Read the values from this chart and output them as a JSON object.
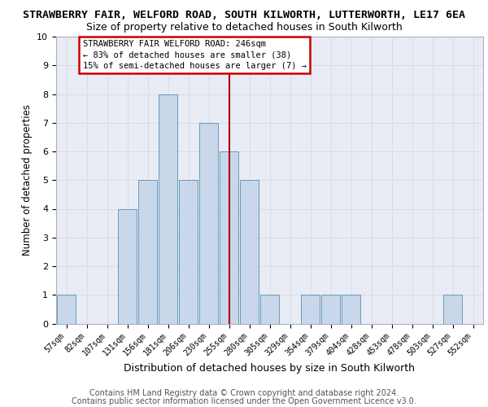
{
  "title": "STRAWBERRY FAIR, WELFORD ROAD, SOUTH KILWORTH, LUTTERWORTH, LE17 6EA",
  "subtitle": "Size of property relative to detached houses in South Kilworth",
  "xlabel": "Distribution of detached houses by size in South Kilworth",
  "ylabel": "Number of detached properties",
  "categories": [
    "57sqm",
    "82sqm",
    "107sqm",
    "131sqm",
    "156sqm",
    "181sqm",
    "206sqm",
    "230sqm",
    "255sqm",
    "280sqm",
    "305sqm",
    "329sqm",
    "354sqm",
    "379sqm",
    "404sqm",
    "428sqm",
    "453sqm",
    "478sqm",
    "503sqm",
    "527sqm",
    "552sqm"
  ],
  "values": [
    1,
    0,
    0,
    4,
    5,
    8,
    5,
    7,
    6,
    5,
    1,
    0,
    1,
    1,
    1,
    0,
    0,
    0,
    0,
    1,
    0
  ],
  "bar_color": "#c8d8ea",
  "bar_edge_color": "#6699bb",
  "vline_x_index": 8,
  "vline_color": "#aa0000",
  "annotation_line1": "STRAWBERRY FAIR WELFORD ROAD: 246sqm",
  "annotation_line2": "← 83% of detached houses are smaller (38)",
  "annotation_line3": "15% of semi-detached houses are larger (7) →",
  "annotation_box_color": "#cc0000",
  "annotation_box_bg": "#ffffff",
  "ylim": [
    0,
    10
  ],
  "yticks": [
    0,
    1,
    2,
    3,
    4,
    5,
    6,
    7,
    8,
    9,
    10
  ],
  "grid_color": "#d8dce8",
  "background_color": "#eaecf5",
  "footer_line1": "Contains HM Land Registry data © Crown copyright and database right 2024.",
  "footer_line2": "Contains public sector information licensed under the Open Government Licence v3.0.",
  "title_fontsize": 9.5,
  "subtitle_fontsize": 9,
  "xlabel_fontsize": 9,
  "ylabel_fontsize": 8.5
}
